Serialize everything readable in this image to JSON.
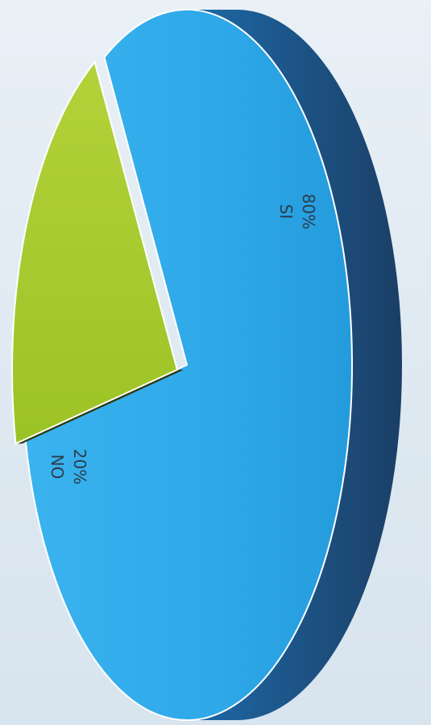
{
  "chart_data": {
    "type": "pie",
    "style": "3d",
    "orientation": "rotated",
    "categories": [
      "SI",
      "NO"
    ],
    "values": [
      80,
      20
    ],
    "data_labels": [
      "80%",
      "20%"
    ],
    "colors": {
      "SI": "#2ea8e8",
      "SI_side": "#1f4f7e",
      "NO": "#a6cc2c",
      "NO_side": "#2f3b12"
    },
    "legend": "none"
  }
}
